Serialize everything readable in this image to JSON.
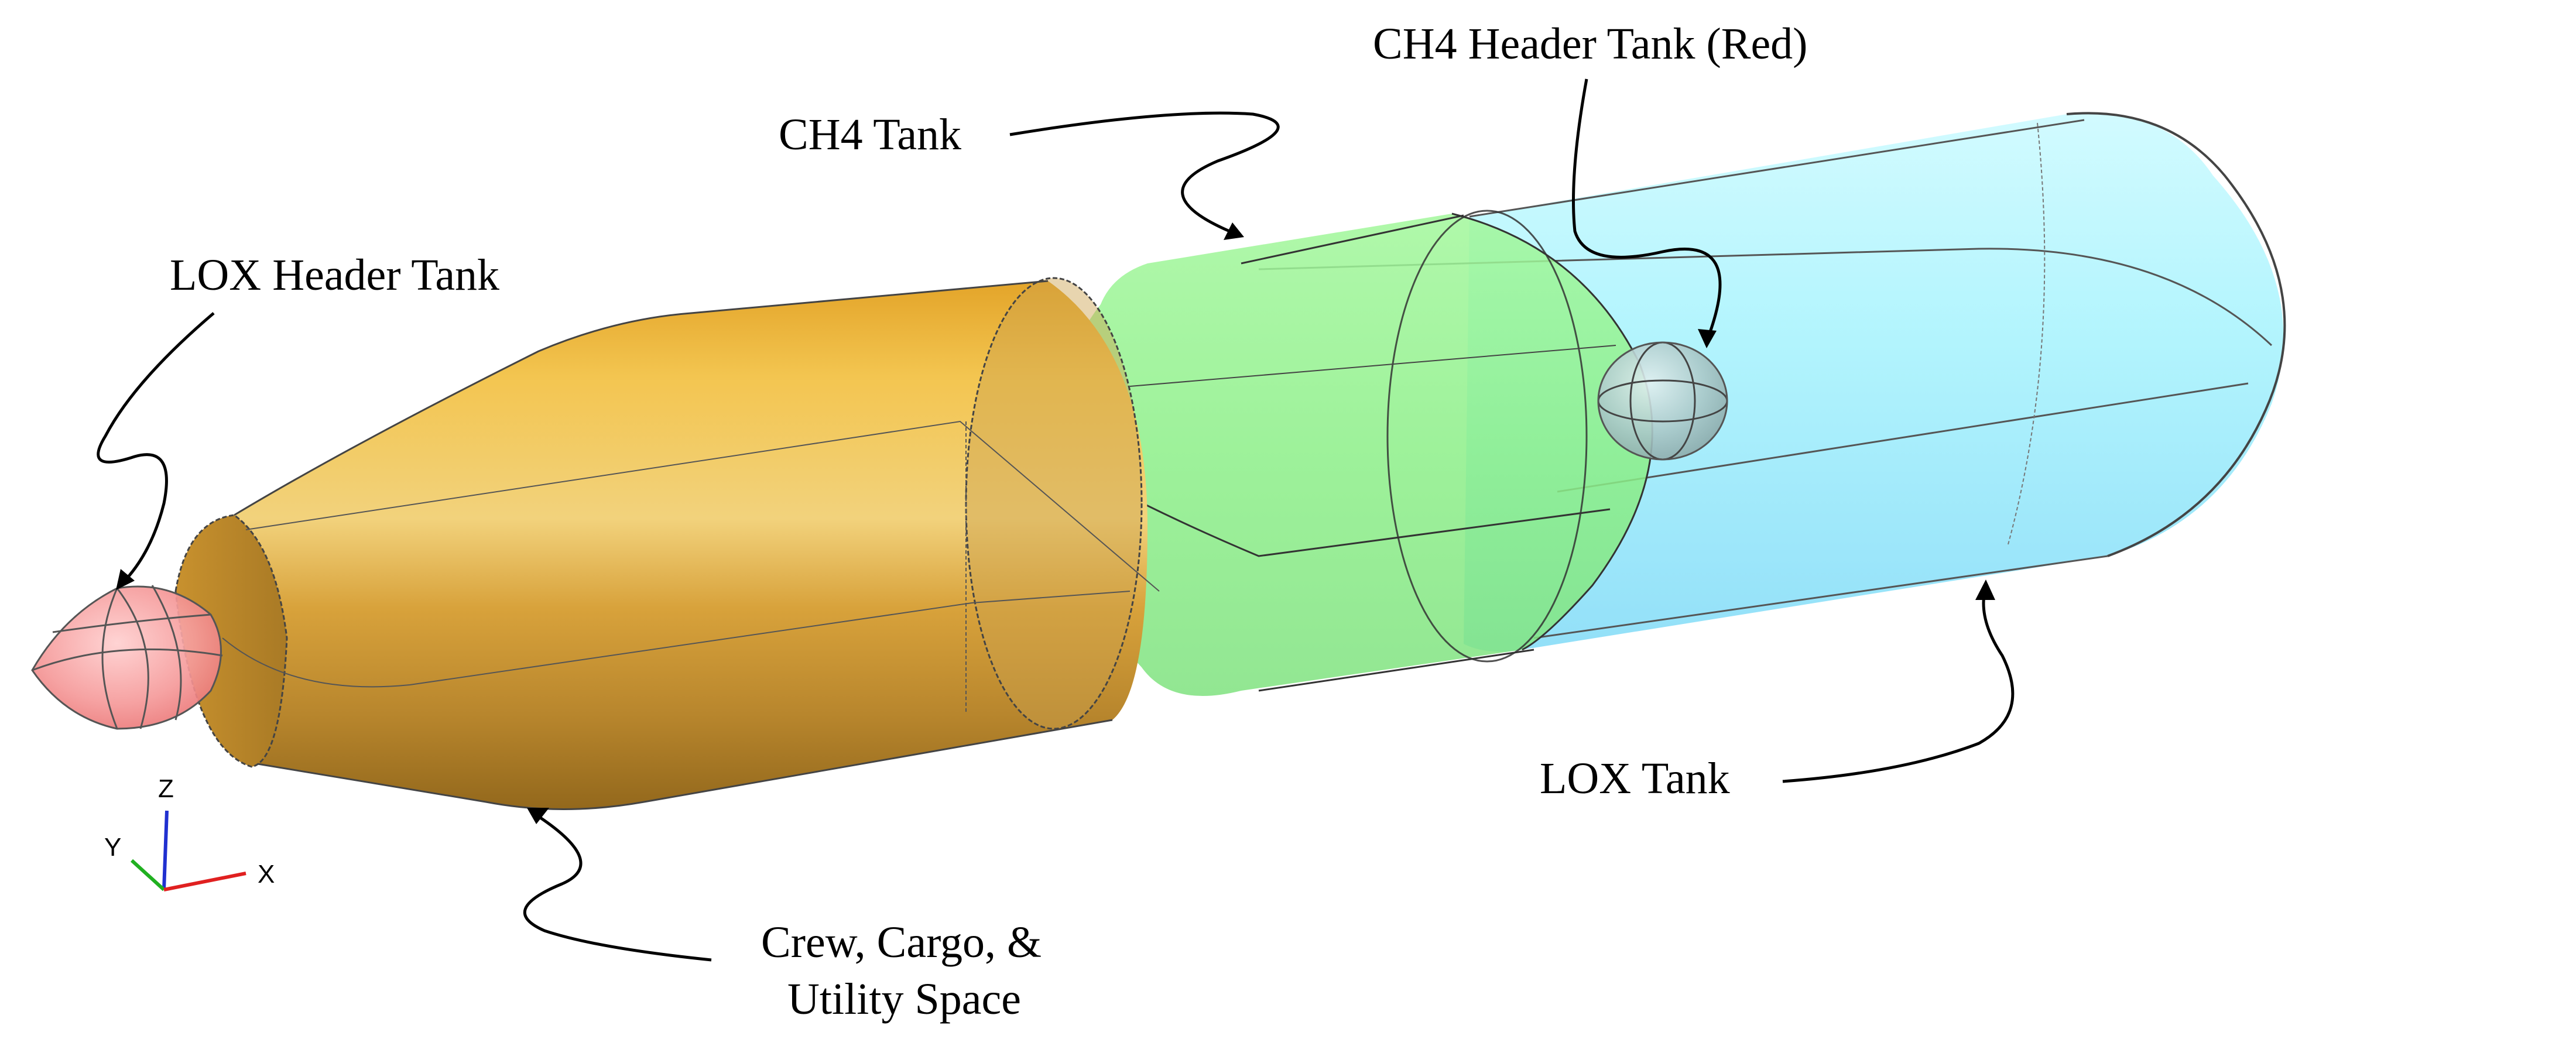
{
  "labels": {
    "lox_header_tank": "LOX Header Tank",
    "ch4_tank": "CH4 Tank",
    "ch4_header_tank": "CH4 Header Tank (Red)",
    "lox_tank": "LOX Tank",
    "crew_space_line1": "Crew, Cargo, &",
    "crew_space_line2": "Utility Space"
  },
  "axis_triad": {
    "x": "X",
    "y": "Y",
    "z": "Z"
  },
  "colors": {
    "lox_tank": "#8ee9fb",
    "ch4_tank": "#8ff08a",
    "crew_space": "#d9a23c",
    "lox_header_tank": "#f48a8a",
    "ch4_header_tank": "#9fc7c8",
    "axis_x": "#e02020",
    "axis_y": "#20b020",
    "axis_z": "#2030d0"
  }
}
